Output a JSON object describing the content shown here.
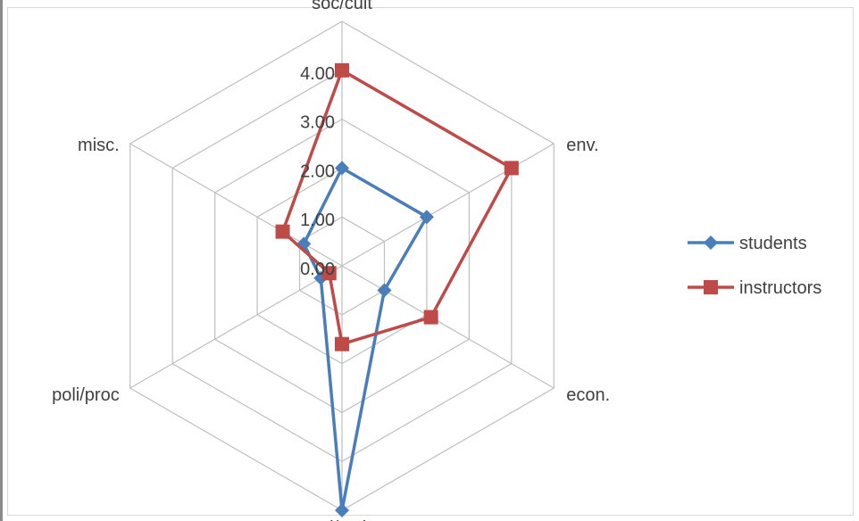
{
  "chart_data": {
    "type": "radar",
    "categories": [
      "soc/cult",
      "env.",
      "econ.",
      "sci/tech",
      "poli/proc",
      "misc."
    ],
    "ticks": [
      "0.00",
      "1.00",
      "2.00",
      "3.00",
      "4.00"
    ],
    "rmin": 0,
    "rmax": 5,
    "series": [
      {
        "name": "students",
        "color": "#4a7ebb",
        "marker": "diamond",
        "values": [
          2.0,
          2.0,
          1.0,
          5.0,
          0.5,
          0.9
        ]
      },
      {
        "name": "instructors",
        "color": "#be4b48",
        "marker": "square",
        "values": [
          4.0,
          4.0,
          2.1,
          1.6,
          0.3,
          1.4
        ]
      }
    ],
    "legend_position": "right"
  }
}
